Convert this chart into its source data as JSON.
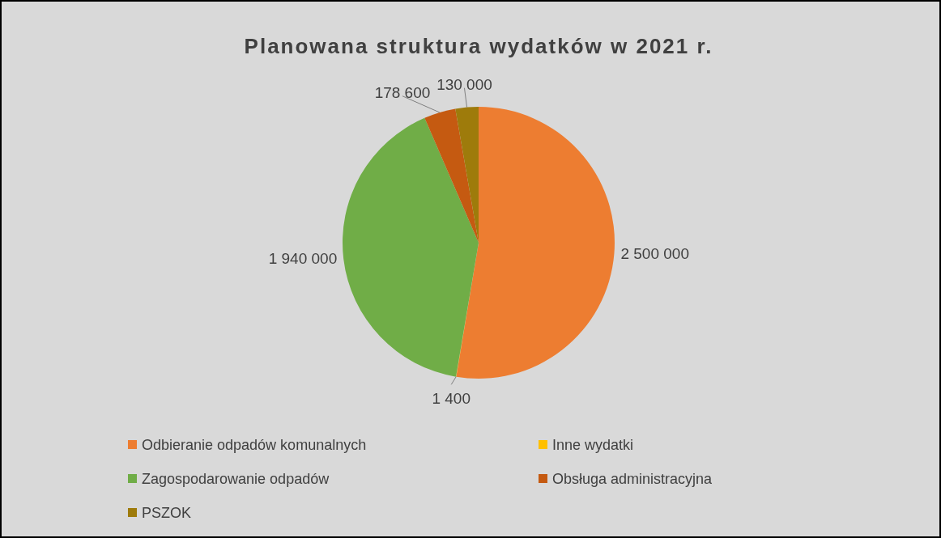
{
  "chart_data": {
    "type": "pie",
    "title": "Planowana struktura wydatków w 2021 r.",
    "categories": [
      "Odbieranie odpadów komunalnych",
      "Inne wydatki",
      "Zagospodarowanie odpadów",
      "Obsługa administracyjna",
      "PSZOK"
    ],
    "values": [
      2500000,
      1400,
      1940000,
      178600,
      130000
    ],
    "value_labels": [
      "2 500 000",
      "1 400",
      "1 940 000",
      "178 600",
      "130 000"
    ],
    "colors": [
      "#ed7d31",
      "#ffc000",
      "#70ad47",
      "#c55a11",
      "#9e7b0b"
    ],
    "legend": "bottom"
  }
}
